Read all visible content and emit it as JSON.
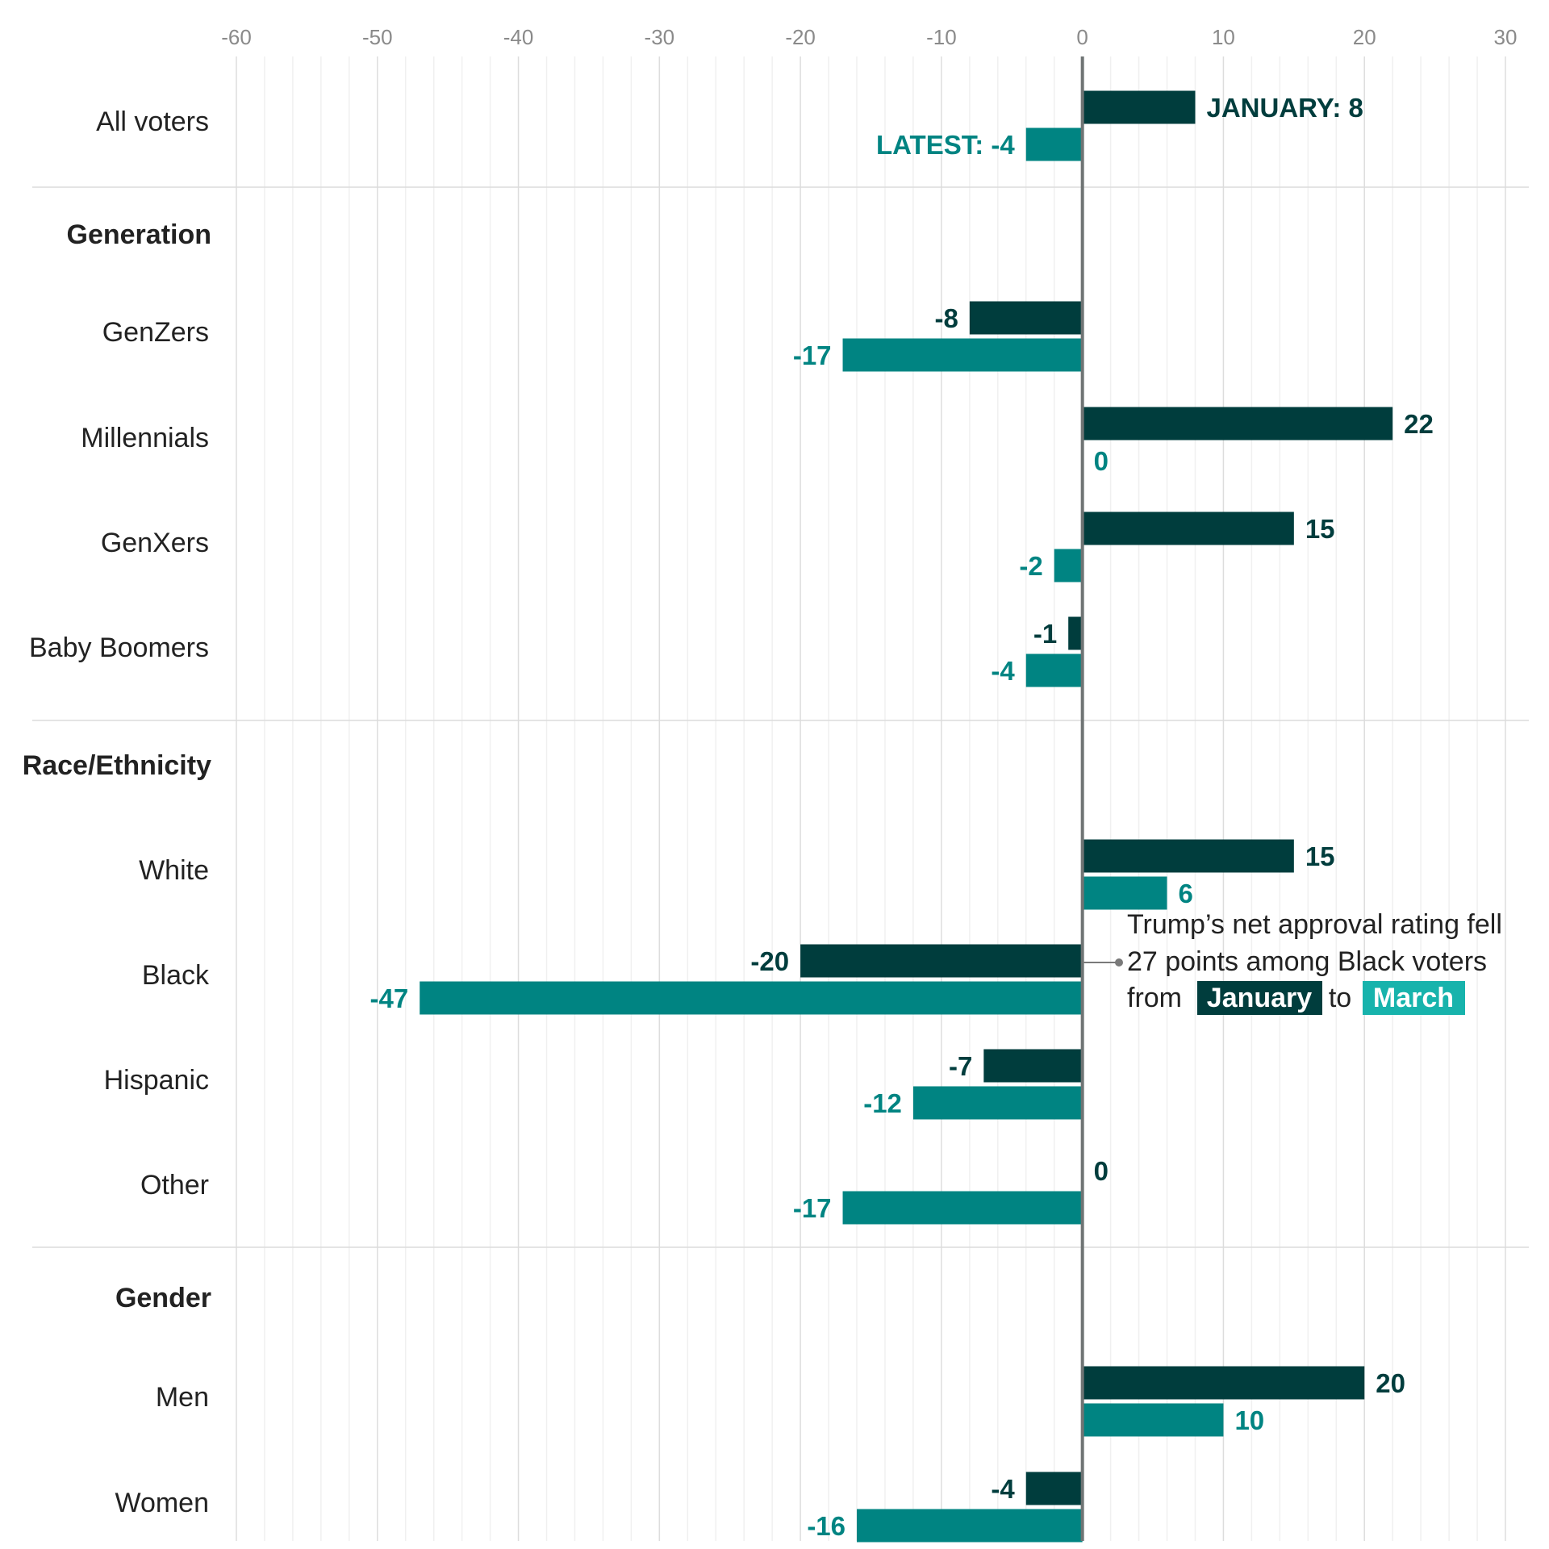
{
  "chart_data": {
    "type": "bar",
    "orientation": "horizontal",
    "xlim": [
      -60,
      30
    ],
    "x_ticks": [
      "-60",
      "-50",
      "-40",
      "-30",
      "-20",
      "-10",
      "0",
      "10",
      "20",
      "30"
    ],
    "colors": {
      "january": "#003d3d",
      "latest": "#008482",
      "highlight_march": "#17b3ac"
    },
    "rows": [
      {
        "kind": "category",
        "label": "All voters",
        "january": 8,
        "latest": -4,
        "january_label": "JANUARY: 8",
        "latest_label": "LATEST: -4"
      },
      {
        "kind": "group",
        "label": "Generation"
      },
      {
        "kind": "category",
        "label": "GenZers",
        "january": -8,
        "latest": -17,
        "january_label": "-8",
        "latest_label": "-17"
      },
      {
        "kind": "category",
        "label": "Millennials",
        "january": 22,
        "latest": 0,
        "january_label": "22",
        "latest_label": "0"
      },
      {
        "kind": "category",
        "label": "GenXers",
        "january": 15,
        "latest": -2,
        "january_label": "15",
        "latest_label": "-2"
      },
      {
        "kind": "category",
        "label": "Baby Boomers",
        "january": -1,
        "latest": -4,
        "january_label": "-1",
        "latest_label": "-4"
      },
      {
        "kind": "group",
        "label": "Race/Ethnicity"
      },
      {
        "kind": "category",
        "label": "White",
        "january": 15,
        "latest": 6,
        "january_label": "15",
        "latest_label": "6"
      },
      {
        "kind": "category",
        "label": "Black",
        "january": -20,
        "latest": -47,
        "january_label": "-20",
        "latest_label": "-47"
      },
      {
        "kind": "category",
        "label": "Hispanic",
        "january": -7,
        "latest": -12,
        "january_label": "-7",
        "latest_label": "-12"
      },
      {
        "kind": "category",
        "label": "Other",
        "january": 0,
        "latest": -17,
        "january_label": "0",
        "latest_label": "-17"
      },
      {
        "kind": "group",
        "label": "Gender"
      },
      {
        "kind": "category",
        "label": "Men",
        "january": 20,
        "latest": 10,
        "january_label": "20",
        "latest_label": "10"
      },
      {
        "kind": "category",
        "label": "Women",
        "january": -4,
        "latest": -16,
        "january_label": "-4",
        "latest_label": "-16"
      }
    ],
    "annotation": {
      "line1": "Trump’s net approval rating fell",
      "line2": "27 points among Black voters",
      "line3_prefix": "from",
      "highlight_january": "January",
      "line3_mid": "to",
      "highlight_march": "March"
    }
  }
}
